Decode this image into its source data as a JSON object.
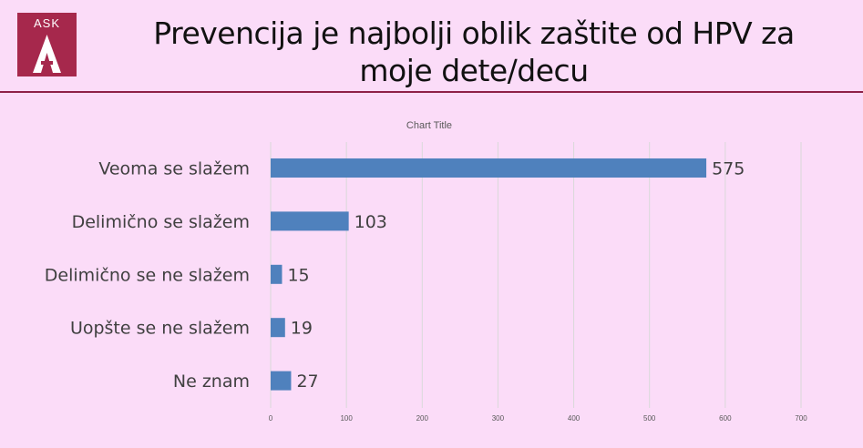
{
  "logo": {
    "text": "ASK"
  },
  "slide": {
    "title": "Prevencija je najbolji oblik zaštite od HPV za moje dete/decu"
  },
  "colors": {
    "bar": "#4f81bd",
    "accent": "#a6284c",
    "background": "#fbdcf8",
    "rule": "#8e2148"
  },
  "chart_data": {
    "type": "bar",
    "orientation": "horizontal",
    "title": "Chart Title",
    "categories": [
      "Veoma se slažem",
      "Delimično se slažem",
      "Delimično se ne slažem",
      "Uopšte se ne slažem",
      "Ne znam"
    ],
    "values": [
      575,
      103,
      15,
      19,
      27
    ],
    "xlim": [
      0,
      700
    ],
    "xticks": [
      0,
      100,
      200,
      300,
      400,
      500,
      600,
      700
    ],
    "grid": true,
    "data_labels": true
  }
}
